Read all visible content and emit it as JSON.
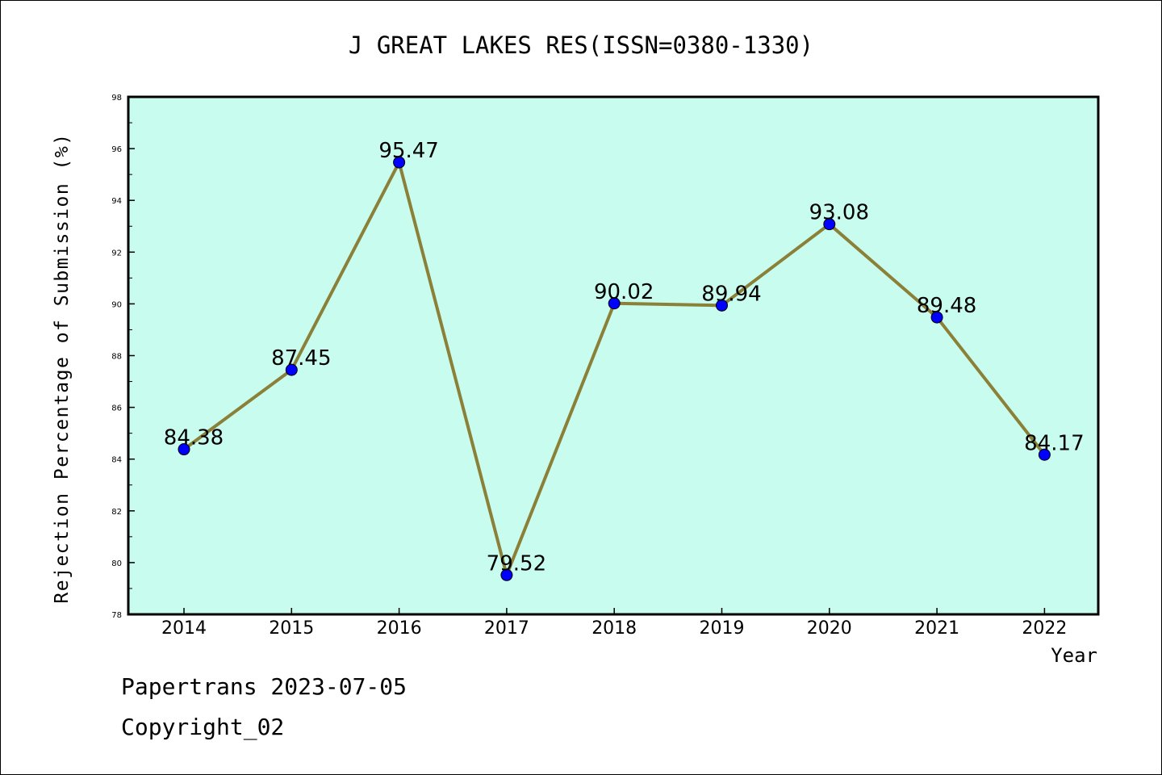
{
  "chart_data": {
    "type": "line",
    "title": "J GREAT LAKES RES(ISSN=0380-1330)",
    "xlabel": "Year",
    "ylabel": "Rejection Percentage of Submission (%)",
    "categories": [
      "2014",
      "2015",
      "2016",
      "2017",
      "2018",
      "2019",
      "2020",
      "2021",
      "2022"
    ],
    "values": [
      84.38,
      87.45,
      95.47,
      79.52,
      90.02,
      89.94,
      93.08,
      89.48,
      84.17
    ],
    "data_labels": [
      "84.38",
      "87.45",
      "95.47",
      "79.52",
      "90.02",
      "89.94",
      "93.08",
      "89.48",
      "84.17"
    ],
    "ylim": [
      78,
      98
    ],
    "yticks": [
      "78",
      "80",
      "82",
      "84",
      "86",
      "88",
      "90",
      "92",
      "94",
      "96",
      "98"
    ],
    "grid": false,
    "colors": {
      "plot_background": "#c8fcee",
      "line": "#8b8038",
      "marker": "#0000ff"
    }
  },
  "footer": {
    "line1": "Papertrans 2023-07-05",
    "line2": "Copyright_02"
  }
}
